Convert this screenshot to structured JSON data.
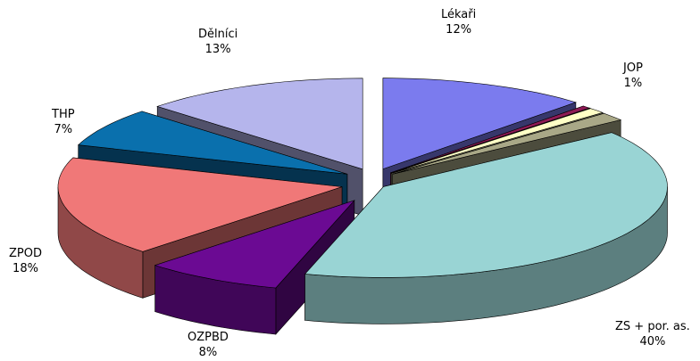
{
  "chart_data": {
    "type": "pie",
    "style": "3d-exploded",
    "slices": [
      {
        "label": "Lékaři",
        "value": 12,
        "display": "12%",
        "color": "#7b7bee"
      },
      {
        "label": "",
        "value": 0.5,
        "display": "",
        "color": "#8e1a55"
      },
      {
        "label": "JOP",
        "value": 1,
        "display": "1%",
        "color": "#ffffc6"
      },
      {
        "label": "",
        "value": 1.5,
        "display": "",
        "color": "#a9a887"
      },
      {
        "label": "ZS + por. as.",
        "value": 40,
        "display": "40%",
        "color": "#99d4d4"
      },
      {
        "label": "OZPBD",
        "value": 8,
        "display": "8%",
        "color": "#6b0a93"
      },
      {
        "label": "ZPOD",
        "value": 18,
        "display": "18%",
        "color": "#f07878"
      },
      {
        "label": "THP",
        "value": 7,
        "display": "7%",
        "color": "#0a70ad"
      },
      {
        "label": "Dělníci",
        "value": 13,
        "display": "13%",
        "color": "#b5b5ec"
      }
    ]
  }
}
